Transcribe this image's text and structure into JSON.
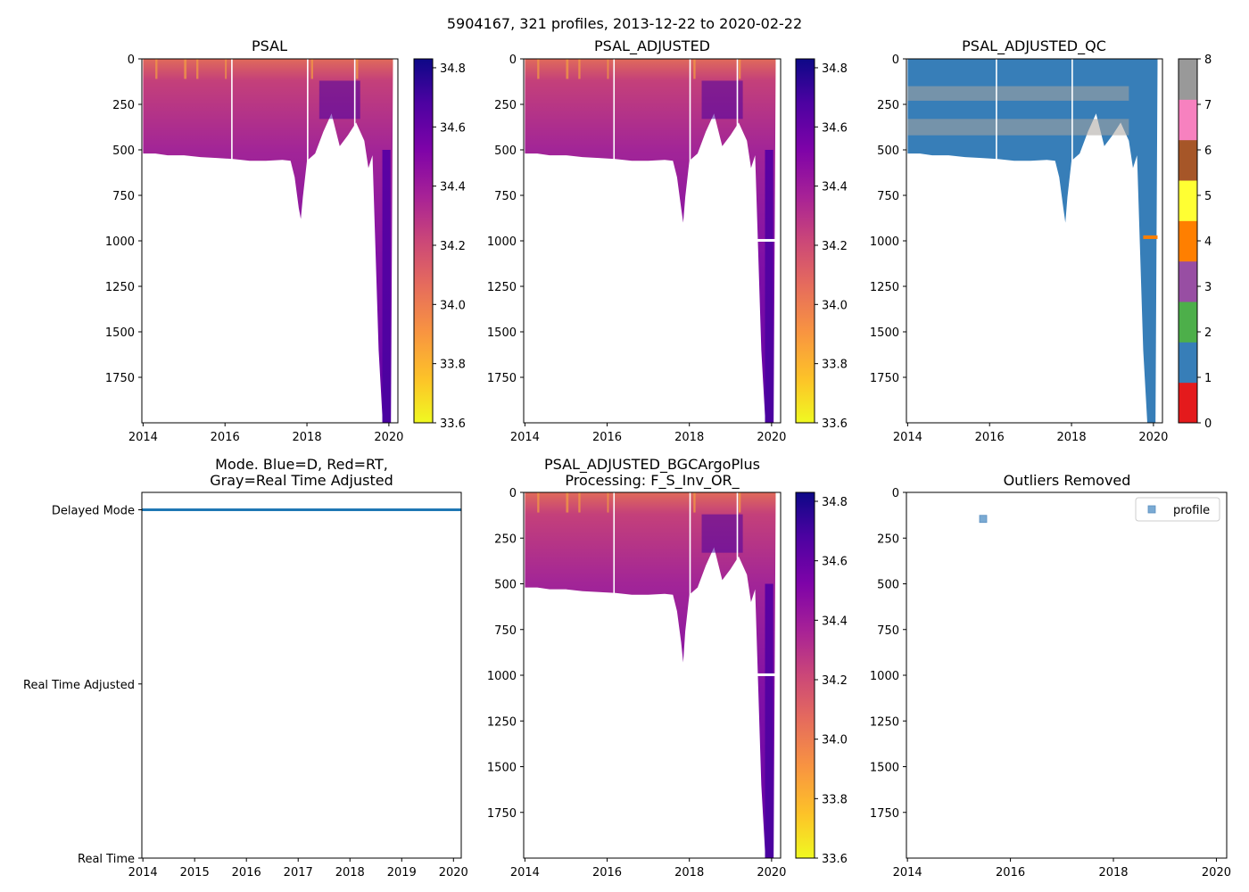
{
  "figure": {
    "suptitle": "5904167, 321 profiles, 2013-12-22 to 2020-02-22"
  },
  "chart_data": [
    {
      "id": "psal",
      "type": "heatmap",
      "title": "PSAL",
      "xlim": [
        2013.97,
        2020.22
      ],
      "ylim": [
        2000,
        0
      ],
      "xticks": [
        {
          "v": 2014,
          "label": "2014"
        },
        {
          "v": 2016,
          "label": "2016"
        },
        {
          "v": 2018,
          "label": "2018"
        },
        {
          "v": 2020,
          "label": "2020"
        }
      ],
      "yticks": [
        {
          "v": 0,
          "label": "0"
        },
        {
          "v": 250,
          "label": "250"
        },
        {
          "v": 500,
          "label": "500"
        },
        {
          "v": 750,
          "label": "750"
        },
        {
          "v": 1000,
          "label": "1000"
        },
        {
          "v": 1250,
          "label": "1250"
        },
        {
          "v": 1500,
          "label": "1500"
        },
        {
          "v": 1750,
          "label": "1750"
        }
      ],
      "colorbar": {
        "colormap": "plasma_r",
        "vmin": 33.6,
        "vmax": 34.83,
        "ticks": [
          {
            "v": 33.6,
            "label": "33.6"
          },
          {
            "v": 33.8,
            "label": "33.8"
          },
          {
            "v": 34.0,
            "label": "34.0"
          },
          {
            "v": 34.2,
            "label": "34.2"
          },
          {
            "v": 34.4,
            "label": "34.4"
          },
          {
            "v": 34.6,
            "label": "34.6"
          },
          {
            "v": 34.8,
            "label": "34.8"
          }
        ]
      },
      "max_depth_profile": [
        [
          2014.0,
          520
        ],
        [
          2014.3,
          520
        ],
        [
          2014.6,
          530
        ],
        [
          2015.0,
          530
        ],
        [
          2015.4,
          540
        ],
        [
          2015.8,
          545
        ],
        [
          2016.2,
          550
        ],
        [
          2016.6,
          560
        ],
        [
          2017.0,
          560
        ],
        [
          2017.4,
          555
        ],
        [
          2017.6,
          560
        ],
        [
          2017.7,
          650
        ],
        [
          2017.8,
          820
        ],
        [
          2017.85,
          880
        ],
        [
          2017.9,
          760
        ],
        [
          2018.0,
          560
        ],
        [
          2018.2,
          520
        ],
        [
          2018.4,
          400
        ],
        [
          2018.6,
          300
        ],
        [
          2018.8,
          480
        ],
        [
          2019.0,
          420
        ],
        [
          2019.2,
          350
        ],
        [
          2019.4,
          450
        ],
        [
          2019.5,
          600
        ],
        [
          2019.6,
          530
        ],
        [
          2019.75,
          1600
        ],
        [
          2019.85,
          2000
        ],
        [
          2020.05,
          2000
        ],
        [
          2020.1,
          30
        ]
      ],
      "gap_columns": [
        2016.15,
        2018.0,
        2019.15
      ]
    },
    {
      "id": "psal_adjusted",
      "type": "heatmap",
      "title": "PSAL_ADJUSTED",
      "xlim": [
        2013.97,
        2020.22
      ],
      "ylim": [
        2000,
        0
      ],
      "xticks": [
        {
          "v": 2014,
          "label": "2014"
        },
        {
          "v": 2016,
          "label": "2016"
        },
        {
          "v": 2018,
          "label": "2018"
        },
        {
          "v": 2020,
          "label": "2020"
        }
      ],
      "yticks": [
        {
          "v": 0,
          "label": "0"
        },
        {
          "v": 250,
          "label": "250"
        },
        {
          "v": 500,
          "label": "500"
        },
        {
          "v": 750,
          "label": "750"
        },
        {
          "v": 1000,
          "label": "1000"
        },
        {
          "v": 1250,
          "label": "1250"
        },
        {
          "v": 1500,
          "label": "1500"
        },
        {
          "v": 1750,
          "label": "1750"
        }
      ],
      "colorbar": {
        "colormap": "plasma_r",
        "vmin": 33.6,
        "vmax": 34.83,
        "ticks": [
          {
            "v": 33.6,
            "label": "33.6"
          },
          {
            "v": 33.8,
            "label": "33.8"
          },
          {
            "v": 34.0,
            "label": "34.0"
          },
          {
            "v": 34.2,
            "label": "34.2"
          },
          {
            "v": 34.4,
            "label": "34.4"
          },
          {
            "v": 34.6,
            "label": "34.6"
          },
          {
            "v": 34.8,
            "label": "34.8"
          }
        ]
      },
      "max_depth_profile": [
        [
          2014.0,
          520
        ],
        [
          2014.3,
          520
        ],
        [
          2014.6,
          530
        ],
        [
          2015.0,
          530
        ],
        [
          2015.4,
          540
        ],
        [
          2015.8,
          545
        ],
        [
          2016.2,
          550
        ],
        [
          2016.6,
          560
        ],
        [
          2017.0,
          560
        ],
        [
          2017.4,
          555
        ],
        [
          2017.6,
          560
        ],
        [
          2017.7,
          650
        ],
        [
          2017.8,
          820
        ],
        [
          2017.85,
          900
        ],
        [
          2017.9,
          760
        ],
        [
          2018.0,
          560
        ],
        [
          2018.2,
          520
        ],
        [
          2018.4,
          400
        ],
        [
          2018.6,
          300
        ],
        [
          2018.8,
          480
        ],
        [
          2019.0,
          420
        ],
        [
          2019.2,
          350
        ],
        [
          2019.4,
          450
        ],
        [
          2019.5,
          600
        ],
        [
          2019.6,
          530
        ],
        [
          2019.75,
          1600
        ],
        [
          2019.85,
          2000
        ],
        [
          2020.05,
          2000
        ],
        [
          2020.1,
          30
        ]
      ],
      "gap_columns": [
        2016.15,
        2018.0,
        2019.15
      ]
    },
    {
      "id": "psal_adjusted_qc",
      "type": "heatmap",
      "title": "PSAL_ADJUSTED_QC",
      "xlim": [
        2013.97,
        2020.22
      ],
      "ylim": [
        2000,
        0
      ],
      "xticks": [
        {
          "v": 2014,
          "label": "2014"
        },
        {
          "v": 2016,
          "label": "2016"
        },
        {
          "v": 2018,
          "label": "2018"
        },
        {
          "v": 2020,
          "label": "2020"
        }
      ],
      "yticks": [
        {
          "v": 0,
          "label": "0"
        },
        {
          "v": 250,
          "label": "250"
        },
        {
          "v": 500,
          "label": "500"
        },
        {
          "v": 750,
          "label": "750"
        },
        {
          "v": 1000,
          "label": "1000"
        },
        {
          "v": 1250,
          "label": "1250"
        },
        {
          "v": 1500,
          "label": "1500"
        },
        {
          "v": 1750,
          "label": "1750"
        }
      ],
      "qc_bands": [
        [
          150,
          230
        ],
        [
          330,
          420
        ]
      ],
      "qc4_depth": 980,
      "qc_colorbar": {
        "vmin": 0,
        "vmax": 8,
        "colors": [
          "#e41a1c",
          "#377eb8",
          "#4daf4a",
          "#984ea3",
          "#ff7f00",
          "#ffff33",
          "#a65628",
          "#f781bf",
          "#999999"
        ],
        "ticks": [
          {
            "v": 0,
            "label": "0"
          },
          {
            "v": 1,
            "label": "1"
          },
          {
            "v": 2,
            "label": "2"
          },
          {
            "v": 3,
            "label": "3"
          },
          {
            "v": 4,
            "label": "4"
          },
          {
            "v": 5,
            "label": "5"
          },
          {
            "v": 6,
            "label": "6"
          },
          {
            "v": 7,
            "label": "7"
          },
          {
            "v": 8,
            "label": "8"
          }
        ]
      },
      "max_depth_profile": [
        [
          2014.0,
          520
        ],
        [
          2014.3,
          520
        ],
        [
          2014.6,
          530
        ],
        [
          2015.0,
          530
        ],
        [
          2015.4,
          540
        ],
        [
          2015.8,
          545
        ],
        [
          2016.2,
          550
        ],
        [
          2016.6,
          560
        ],
        [
          2017.0,
          560
        ],
        [
          2017.4,
          555
        ],
        [
          2017.6,
          560
        ],
        [
          2017.7,
          650
        ],
        [
          2017.8,
          820
        ],
        [
          2017.85,
          900
        ],
        [
          2017.9,
          760
        ],
        [
          2018.0,
          560
        ],
        [
          2018.2,
          520
        ],
        [
          2018.4,
          400
        ],
        [
          2018.6,
          300
        ],
        [
          2018.8,
          480
        ],
        [
          2019.0,
          420
        ],
        [
          2019.2,
          350
        ],
        [
          2019.4,
          450
        ],
        [
          2019.5,
          600
        ],
        [
          2019.6,
          530
        ],
        [
          2019.75,
          1600
        ],
        [
          2019.85,
          2000
        ],
        [
          2020.05,
          2000
        ],
        [
          2020.1,
          30
        ]
      ],
      "gap_columns": [
        2016.15,
        2018.0
      ]
    },
    {
      "id": "mode",
      "type": "line",
      "title": "Mode. Blue=D, Red=RT,",
      "title2": "Gray=Real Time Adjusted",
      "xlim": [
        2013.98,
        2020.15
      ],
      "ylim": [
        0,
        2.1
      ],
      "xticks": [
        {
          "v": 2014,
          "label": "2014"
        },
        {
          "v": 2015,
          "label": "2015"
        },
        {
          "v": 2016,
          "label": "2016"
        },
        {
          "v": 2017,
          "label": "2017"
        },
        {
          "v": 2018,
          "label": "2018"
        },
        {
          "v": 2019,
          "label": "2019"
        },
        {
          "v": 2020,
          "label": "2020"
        }
      ],
      "yticks": [
        {
          "v": 0,
          "label": "Real Time"
        },
        {
          "v": 1,
          "label": "Real Time Adjusted"
        },
        {
          "v": 2,
          "label": "Delayed Mode"
        }
      ],
      "series": [
        {
          "name": "Delayed Mode",
          "color": "#1f77b4",
          "x_range": [
            2013.98,
            2020.15
          ],
          "value": 2
        }
      ]
    },
    {
      "id": "psal_bgc",
      "type": "heatmap",
      "title": "PSAL_ADJUSTED_BGCArgoPlus",
      "title2": "Processing: F_S_Inv_OR_",
      "xlim": [
        2013.97,
        2020.22
      ],
      "ylim": [
        2000,
        0
      ],
      "xticks": [
        {
          "v": 2014,
          "label": "2014"
        },
        {
          "v": 2016,
          "label": "2016"
        },
        {
          "v": 2018,
          "label": "2018"
        },
        {
          "v": 2020,
          "label": "2020"
        }
      ],
      "yticks": [
        {
          "v": 0,
          "label": "0"
        },
        {
          "v": 250,
          "label": "250"
        },
        {
          "v": 500,
          "label": "500"
        },
        {
          "v": 750,
          "label": "750"
        },
        {
          "v": 1000,
          "label": "1000"
        },
        {
          "v": 1250,
          "label": "1250"
        },
        {
          "v": 1500,
          "label": "1500"
        },
        {
          "v": 1750,
          "label": "1750"
        }
      ],
      "colorbar": {
        "colormap": "plasma_r",
        "vmin": 33.6,
        "vmax": 34.83,
        "ticks": [
          {
            "v": 33.6,
            "label": "33.6"
          },
          {
            "v": 33.8,
            "label": "33.8"
          },
          {
            "v": 34.0,
            "label": "34.0"
          },
          {
            "v": 34.2,
            "label": "34.2"
          },
          {
            "v": 34.4,
            "label": "34.4"
          },
          {
            "v": 34.6,
            "label": "34.6"
          },
          {
            "v": 34.8,
            "label": "34.8"
          }
        ]
      },
      "max_depth_profile": [
        [
          2014.0,
          520
        ],
        [
          2014.3,
          520
        ],
        [
          2014.6,
          530
        ],
        [
          2015.0,
          530
        ],
        [
          2015.4,
          540
        ],
        [
          2015.8,
          545
        ],
        [
          2016.2,
          550
        ],
        [
          2016.6,
          560
        ],
        [
          2017.0,
          560
        ],
        [
          2017.4,
          555
        ],
        [
          2017.6,
          560
        ],
        [
          2017.7,
          650
        ],
        [
          2017.8,
          820
        ],
        [
          2017.85,
          930
        ],
        [
          2017.9,
          760
        ],
        [
          2018.0,
          560
        ],
        [
          2018.2,
          520
        ],
        [
          2018.4,
          400
        ],
        [
          2018.6,
          300
        ],
        [
          2018.8,
          480
        ],
        [
          2019.0,
          420
        ],
        [
          2019.2,
          350
        ],
        [
          2019.4,
          450
        ],
        [
          2019.5,
          600
        ],
        [
          2019.6,
          530
        ],
        [
          2019.75,
          1600
        ],
        [
          2019.85,
          2000
        ],
        [
          2020.05,
          2000
        ],
        [
          2020.1,
          30
        ]
      ],
      "gap_columns": [
        2016.15,
        2018.0,
        2019.15
      ]
    },
    {
      "id": "outliers",
      "type": "scatter",
      "title": "Outliers Removed",
      "xlim": [
        2013.98,
        2020.2
      ],
      "ylim": [
        2000,
        0
      ],
      "xticks": [
        {
          "v": 2014,
          "label": "2014"
        },
        {
          "v": 2016,
          "label": "2016"
        },
        {
          "v": 2018,
          "label": "2018"
        },
        {
          "v": 2020,
          "label": "2020"
        }
      ],
      "yticks": [
        {
          "v": 0,
          "label": "0"
        },
        {
          "v": 250,
          "label": "250"
        },
        {
          "v": 500,
          "label": "500"
        },
        {
          "v": 750,
          "label": "750"
        },
        {
          "v": 1000,
          "label": "1000"
        },
        {
          "v": 1250,
          "label": "1250"
        },
        {
          "v": 1500,
          "label": "1500"
        },
        {
          "v": 1750,
          "label": "1750"
        }
      ],
      "legend": {
        "label": "profile",
        "location": "top-right"
      },
      "points": [
        {
          "x": 2015.47,
          "y": 145
        }
      ],
      "marker_color": "#7aaad3"
    }
  ]
}
